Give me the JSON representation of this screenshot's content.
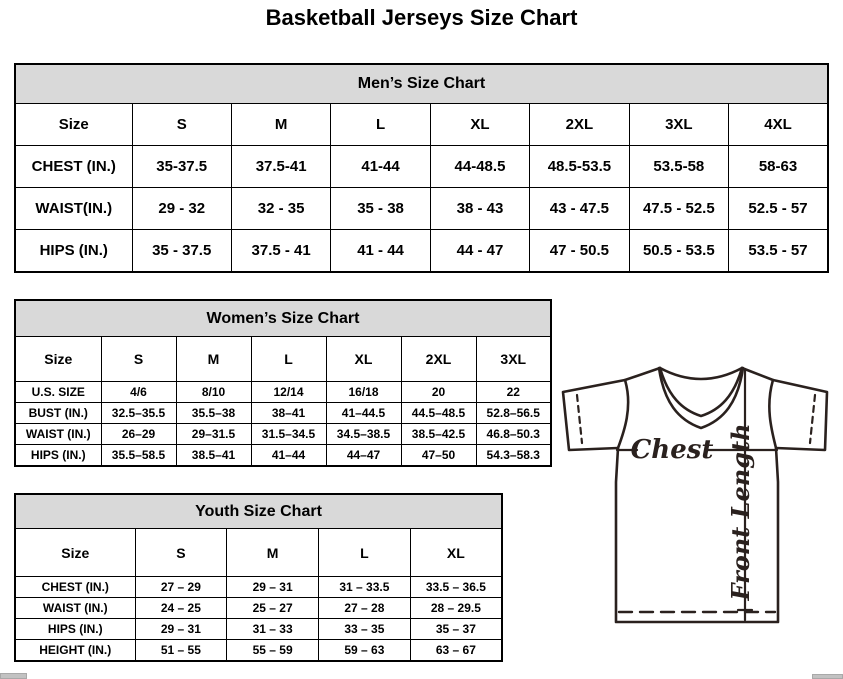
{
  "title": "Basketball Jerseys Size Chart",
  "tables": [
    {
      "title": "Men’s Size Chart",
      "columns": [
        "Size",
        "S",
        "M",
        "L",
        "XL",
        "2XL",
        "3XL",
        "4XL"
      ],
      "rows": [
        {
          "label": "CHEST (IN.)",
          "values": [
            "35-37.5",
            "37.5-41",
            "41-44",
            "44-48.5",
            "48.5-53.5",
            "53.5-58",
            "58-63"
          ]
        },
        {
          "label": "WAIST(IN.)",
          "values": [
            "29 - 32",
            "32 - 35",
            "35 - 38",
            "38 - 43",
            "43 - 47.5",
            "47.5 - 52.5",
            "52.5 - 57"
          ]
        },
        {
          "label": "HIPS (IN.)",
          "values": [
            "35 - 37.5",
            "37.5 - 41",
            "41 - 44",
            "44 - 47",
            "47 - 50.5",
            "50.5 - 53.5",
            "53.5 - 57"
          ]
        }
      ]
    },
    {
      "title": "Women’s Size Chart",
      "columns": [
        "Size",
        "S",
        "M",
        "L",
        "XL",
        "2XL",
        "3XL"
      ],
      "rows": [
        {
          "label": "U.S. SIZE",
          "values": [
            "4/6",
            "8/10",
            "12/14",
            "16/18",
            "20",
            "22"
          ]
        },
        {
          "label": "BUST (IN.)",
          "values": [
            "32.5–35.5",
            "35.5–38",
            "38–41",
            "41–44.5",
            "44.5–48.5",
            "52.8–56.5"
          ]
        },
        {
          "label": "WAIST (IN.)",
          "values": [
            "26–29",
            "29–31.5",
            "31.5–34.5",
            "34.5–38.5",
            "38.5–42.5",
            "46.8–50.3"
          ]
        },
        {
          "label": "HIPS (IN.)",
          "values": [
            "35.5–58.5",
            "38.5–41",
            "41–44",
            "44–47",
            "47–50",
            "54.3–58.3"
          ]
        }
      ]
    },
    {
      "title": "Youth Size Chart",
      "columns": [
        "Size",
        "S",
        "M",
        "L",
        "XL"
      ],
      "rows": [
        {
          "label": "CHEST (IN.)",
          "values": [
            "27 – 29",
            "29 – 31",
            "31 – 33.5",
            "33.5 – 36.5"
          ]
        },
        {
          "label": "WAIST (IN.)",
          "values": [
            "24 – 25",
            "25 – 27",
            "27 – 28",
            "28 – 29.5"
          ]
        },
        {
          "label": "HIPS (IN.)",
          "values": [
            "29 – 31",
            "31 – 33",
            "33 – 35",
            "35 – 37"
          ]
        },
        {
          "label": "HEIGHT (IN.)",
          "values": [
            "51 – 55",
            "55 – 59",
            "59 – 63",
            "63 – 67"
          ]
        }
      ]
    }
  ],
  "diagram": {
    "chest_label": "Chest",
    "front_length_label": "Front Length"
  },
  "colors": {
    "table_header_bg": "#d9d9d9",
    "table_border": "#000000",
    "jersey_stroke": "#2a211e"
  }
}
